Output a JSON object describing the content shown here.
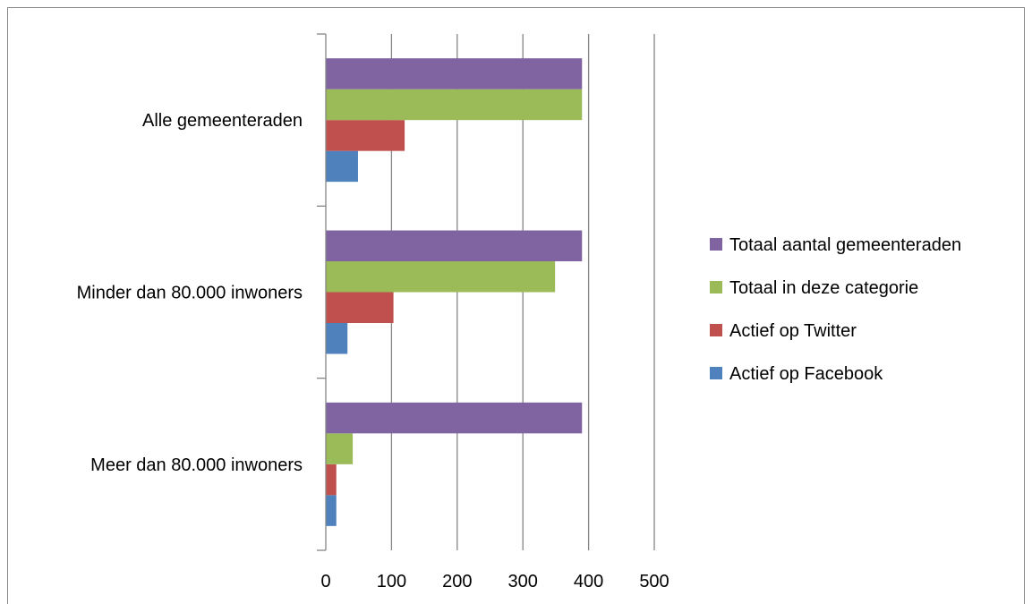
{
  "chart_data": {
    "type": "bar",
    "orientation": "horizontal",
    "title": "",
    "xlabel": "",
    "ylabel": "",
    "categories": [
      "Meer dan 80.000 inwoners",
      "Minder dan 80.000 inwoners",
      "Alle gemeenteraden"
    ],
    "series": [
      {
        "name": "Actief op Facebook",
        "color": "#4F81BD",
        "values": [
          16,
          33,
          49
        ]
      },
      {
        "name": "Actief op Twitter",
        "color": "#C0504D",
        "values": [
          16,
          103,
          120
        ]
      },
      {
        "name": "Totaal in deze categorie",
        "color": "#9BBB59",
        "values": [
          41,
          349,
          390
        ]
      },
      {
        "name": "Totaal aantal gemeenteraden",
        "color": "#8064A2",
        "values": [
          390,
          390,
          390
        ]
      }
    ],
    "xlim": [
      0,
      500
    ],
    "xticks": [
      "0",
      "100",
      "200",
      "300",
      "400",
      "500"
    ],
    "grid": true,
    "gridline_color": "#868686",
    "legend_position": "right",
    "legend_order": [
      "Totaal aantal gemeenteraden",
      "Totaal in deze categorie",
      "Actief op Twitter",
      "Actief op Facebook"
    ]
  }
}
